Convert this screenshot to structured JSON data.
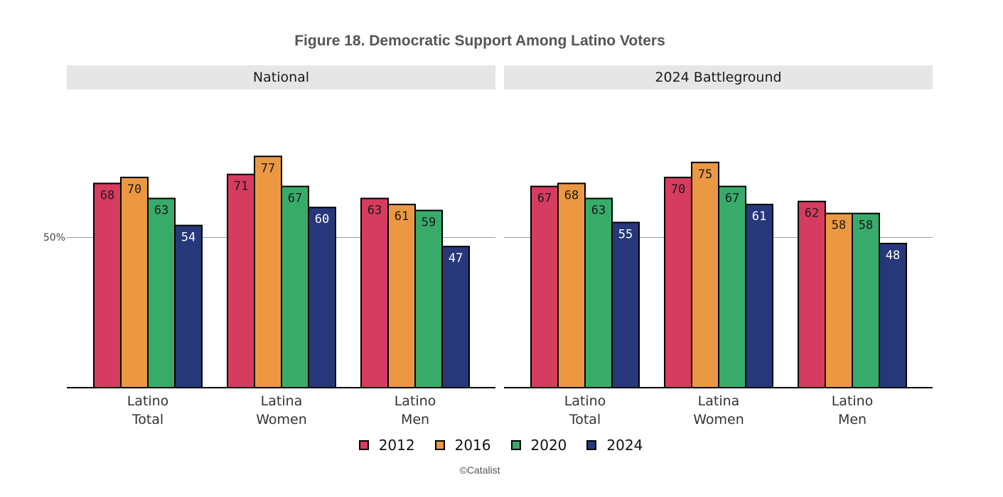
{
  "chart_data": {
    "type": "bar",
    "title": "Figure 18. Democratic Support Among Latino Voters",
    "y_tick_label": "50%",
    "y_reference": 50,
    "ylim": [
      0,
      100
    ],
    "grid": false,
    "legend_placement": "bottom",
    "credit": "©Catalist",
    "series": [
      {
        "name": "2012",
        "color": "#d63c5f"
      },
      {
        "name": "2016",
        "color": "#ec9843"
      },
      {
        "name": "2020",
        "color": "#38ab6b"
      },
      {
        "name": "2024",
        "color": "#26387a"
      }
    ],
    "panels": [
      {
        "name": "National",
        "categories": [
          {
            "lines": [
              "Latino",
              "Total"
            ],
            "values": [
              68,
              70,
              63,
              54
            ]
          },
          {
            "lines": [
              "Latina",
              "Women"
            ],
            "values": [
              71,
              77,
              67,
              60
            ]
          },
          {
            "lines": [
              "Latino",
              "Men"
            ],
            "values": [
              63,
              61,
              59,
              47
            ]
          }
        ]
      },
      {
        "name": "2024 Battleground",
        "categories": [
          {
            "lines": [
              "Latino",
              "Total"
            ],
            "values": [
              67,
              68,
              63,
              55
            ]
          },
          {
            "lines": [
              "Latina",
              "Women"
            ],
            "values": [
              70,
              75,
              67,
              61
            ]
          },
          {
            "lines": [
              "Latino",
              "Men"
            ],
            "values": [
              62,
              58,
              58,
              48
            ]
          }
        ]
      }
    ]
  }
}
